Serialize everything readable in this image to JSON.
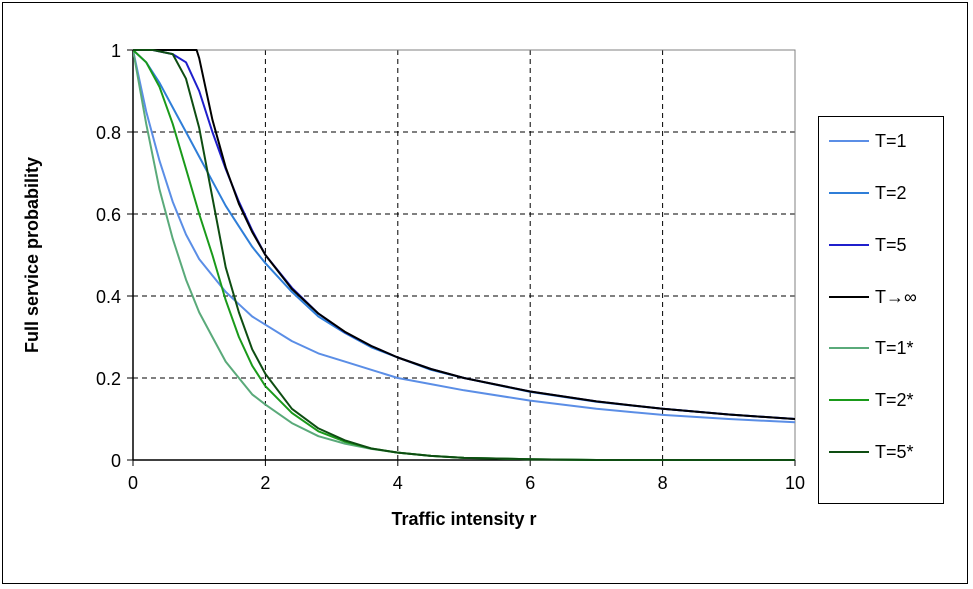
{
  "chart_data": {
    "type": "line",
    "title": "",
    "xlabel": "Traffic intensity r",
    "ylabel": "Full service probability",
    "xlim": [
      0,
      10
    ],
    "ylim": [
      0,
      1
    ],
    "xticks": [
      "0",
      "2",
      "4",
      "6",
      "8",
      "10"
    ],
    "yticks": [
      "0",
      "0.2",
      "0.4",
      "0.6",
      "0.8",
      "1"
    ],
    "grid": true,
    "legend_position": "right",
    "series": [
      {
        "name": "T=1",
        "color": "#5b8ee6",
        "points": [
          [
            0,
            1
          ],
          [
            0.2,
            0.85
          ],
          [
            0.4,
            0.73
          ],
          [
            0.6,
            0.63
          ],
          [
            0.8,
            0.55
          ],
          [
            1,
            0.49
          ],
          [
            1.2,
            0.45
          ],
          [
            1.4,
            0.41
          ],
          [
            1.6,
            0.38
          ],
          [
            1.8,
            0.35
          ],
          [
            2,
            0.33
          ],
          [
            2.4,
            0.29
          ],
          [
            2.8,
            0.26
          ],
          [
            3.2,
            0.24
          ],
          [
            3.6,
            0.22
          ],
          [
            4,
            0.2
          ],
          [
            4.5,
            0.185
          ],
          [
            5,
            0.17
          ],
          [
            6,
            0.145
          ],
          [
            7,
            0.125
          ],
          [
            8,
            0.11
          ],
          [
            9,
            0.1
          ],
          [
            10,
            0.092
          ]
        ]
      },
      {
        "name": "T=2",
        "color": "#2f7ed8",
        "points": [
          [
            0,
            1
          ],
          [
            0.2,
            0.97
          ],
          [
            0.4,
            0.92
          ],
          [
            0.6,
            0.86
          ],
          [
            0.8,
            0.8
          ],
          [
            1,
            0.74
          ],
          [
            1.2,
            0.68
          ],
          [
            1.4,
            0.62
          ],
          [
            1.6,
            0.57
          ],
          [
            1.8,
            0.52
          ],
          [
            2,
            0.48
          ],
          [
            2.4,
            0.41
          ],
          [
            2.8,
            0.35
          ],
          [
            3.2,
            0.31
          ],
          [
            3.6,
            0.275
          ],
          [
            4,
            0.25
          ],
          [
            4.5,
            0.22
          ],
          [
            5,
            0.2
          ],
          [
            6,
            0.166
          ],
          [
            7,
            0.142
          ],
          [
            8,
            0.125
          ],
          [
            9,
            0.111
          ],
          [
            10,
            0.1
          ]
        ]
      },
      {
        "name": "T=5",
        "color": "#1f1fcc",
        "points": [
          [
            0,
            1
          ],
          [
            0.3,
            1
          ],
          [
            0.6,
            0.99
          ],
          [
            0.8,
            0.97
          ],
          [
            1,
            0.9
          ],
          [
            1.2,
            0.8
          ],
          [
            1.4,
            0.71
          ],
          [
            1.6,
            0.63
          ],
          [
            1.8,
            0.56
          ],
          [
            2,
            0.5
          ],
          [
            2.4,
            0.42
          ],
          [
            2.8,
            0.357
          ],
          [
            3.2,
            0.312
          ],
          [
            3.6,
            0.278
          ],
          [
            4,
            0.25
          ],
          [
            4.5,
            0.222
          ],
          [
            5,
            0.2
          ],
          [
            6,
            0.167
          ],
          [
            7,
            0.143
          ],
          [
            8,
            0.125
          ],
          [
            9,
            0.111
          ],
          [
            10,
            0.1
          ]
        ]
      },
      {
        "name": "T→∞",
        "color": "#000000",
        "points": [
          [
            0,
            1
          ],
          [
            0.96,
            1
          ],
          [
            1,
            0.98
          ],
          [
            1.2,
            0.83
          ],
          [
            1.4,
            0.714
          ],
          [
            1.6,
            0.625
          ],
          [
            1.8,
            0.556
          ],
          [
            2,
            0.5
          ],
          [
            2.4,
            0.417
          ],
          [
            2.8,
            0.357
          ],
          [
            3.2,
            0.313
          ],
          [
            3.6,
            0.278
          ],
          [
            4,
            0.25
          ],
          [
            4.5,
            0.222
          ],
          [
            5,
            0.2
          ],
          [
            6,
            0.167
          ],
          [
            7,
            0.143
          ],
          [
            8,
            0.125
          ],
          [
            9,
            0.111
          ],
          [
            10,
            0.1
          ]
        ]
      },
      {
        "name": "T=1*",
        "color": "#5aaa7a",
        "points": [
          [
            0,
            1
          ],
          [
            0.2,
            0.82
          ],
          [
            0.4,
            0.66
          ],
          [
            0.6,
            0.54
          ],
          [
            0.8,
            0.44
          ],
          [
            1,
            0.36
          ],
          [
            1.2,
            0.3
          ],
          [
            1.4,
            0.24
          ],
          [
            1.6,
            0.2
          ],
          [
            1.8,
            0.16
          ],
          [
            2,
            0.135
          ],
          [
            2.4,
            0.09
          ],
          [
            2.8,
            0.058
          ],
          [
            3.2,
            0.04
          ],
          [
            3.6,
            0.027
          ],
          [
            4,
            0.018
          ],
          [
            4.5,
            0.01
          ],
          [
            5,
            0.005
          ],
          [
            6,
            0.002
          ],
          [
            7,
            0
          ],
          [
            8,
            0
          ],
          [
            10,
            0
          ]
        ]
      },
      {
        "name": "T=2*",
        "color": "#1a9a1a",
        "points": [
          [
            0,
            1
          ],
          [
            0.2,
            0.97
          ],
          [
            0.4,
            0.91
          ],
          [
            0.6,
            0.82
          ],
          [
            0.8,
            0.71
          ],
          [
            1,
            0.6
          ],
          [
            1.2,
            0.5
          ],
          [
            1.4,
            0.39
          ],
          [
            1.6,
            0.3
          ],
          [
            1.8,
            0.23
          ],
          [
            2,
            0.18
          ],
          [
            2.4,
            0.115
          ],
          [
            2.8,
            0.07
          ],
          [
            3.2,
            0.045
          ],
          [
            3.6,
            0.028
          ],
          [
            4,
            0.018
          ],
          [
            4.5,
            0.01
          ],
          [
            5,
            0.005
          ],
          [
            6,
            0.002
          ],
          [
            7,
            0
          ],
          [
            8,
            0
          ],
          [
            10,
            0
          ]
        ]
      },
      {
        "name": "T=5*",
        "color": "#0e4d12",
        "points": [
          [
            0,
            1
          ],
          [
            0.3,
            1
          ],
          [
            0.6,
            0.99
          ],
          [
            0.8,
            0.93
          ],
          [
            1,
            0.81
          ],
          [
            1.2,
            0.64
          ],
          [
            1.4,
            0.47
          ],
          [
            1.6,
            0.36
          ],
          [
            1.8,
            0.27
          ],
          [
            2,
            0.21
          ],
          [
            2.4,
            0.125
          ],
          [
            2.8,
            0.077
          ],
          [
            3.2,
            0.048
          ],
          [
            3.6,
            0.028
          ],
          [
            4,
            0.018
          ],
          [
            4.5,
            0.01
          ],
          [
            5,
            0.005
          ],
          [
            6,
            0.002
          ],
          [
            7,
            0
          ],
          [
            8,
            0
          ],
          [
            10,
            0
          ]
        ]
      }
    ]
  }
}
